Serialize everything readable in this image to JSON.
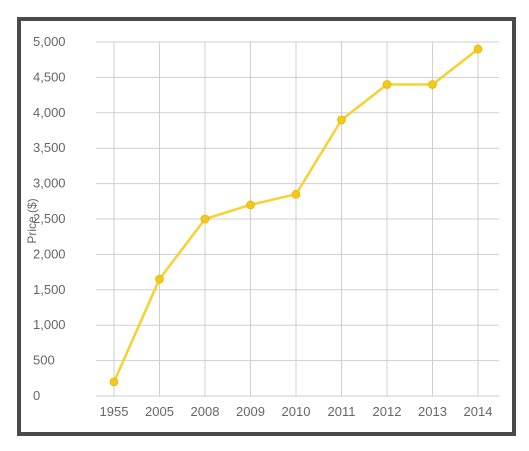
{
  "chart_data": {
    "type": "line",
    "title": "",
    "xlabel": "",
    "ylabel": "Price ($)",
    "categories": [
      "1955",
      "2005",
      "2008",
      "2009",
      "2010",
      "2011",
      "2012",
      "2013",
      "2014"
    ],
    "series": [
      {
        "values": [
          200,
          1650,
          2500,
          2700,
          2850,
          3900,
          4400,
          4400,
          4900
        ]
      }
    ],
    "ylim": [
      0,
      5000
    ],
    "yticks": [
      0,
      500,
      1000,
      1500,
      2000,
      2500,
      3000,
      3500,
      4000,
      4500,
      5000
    ],
    "ytick_labels": [
      "0",
      "500",
      "1,000",
      "1,500",
      "2,000",
      "2,500",
      "3,000",
      "3,500",
      "4,000",
      "4,500",
      "5,000"
    ],
    "grid": true,
    "legend": "none",
    "colors": {
      "line": "#f5d132",
      "marker": "#f2c81e",
      "grid": "#cfcfcf",
      "frame": "#4a4a4a",
      "text": "#666666"
    }
  }
}
